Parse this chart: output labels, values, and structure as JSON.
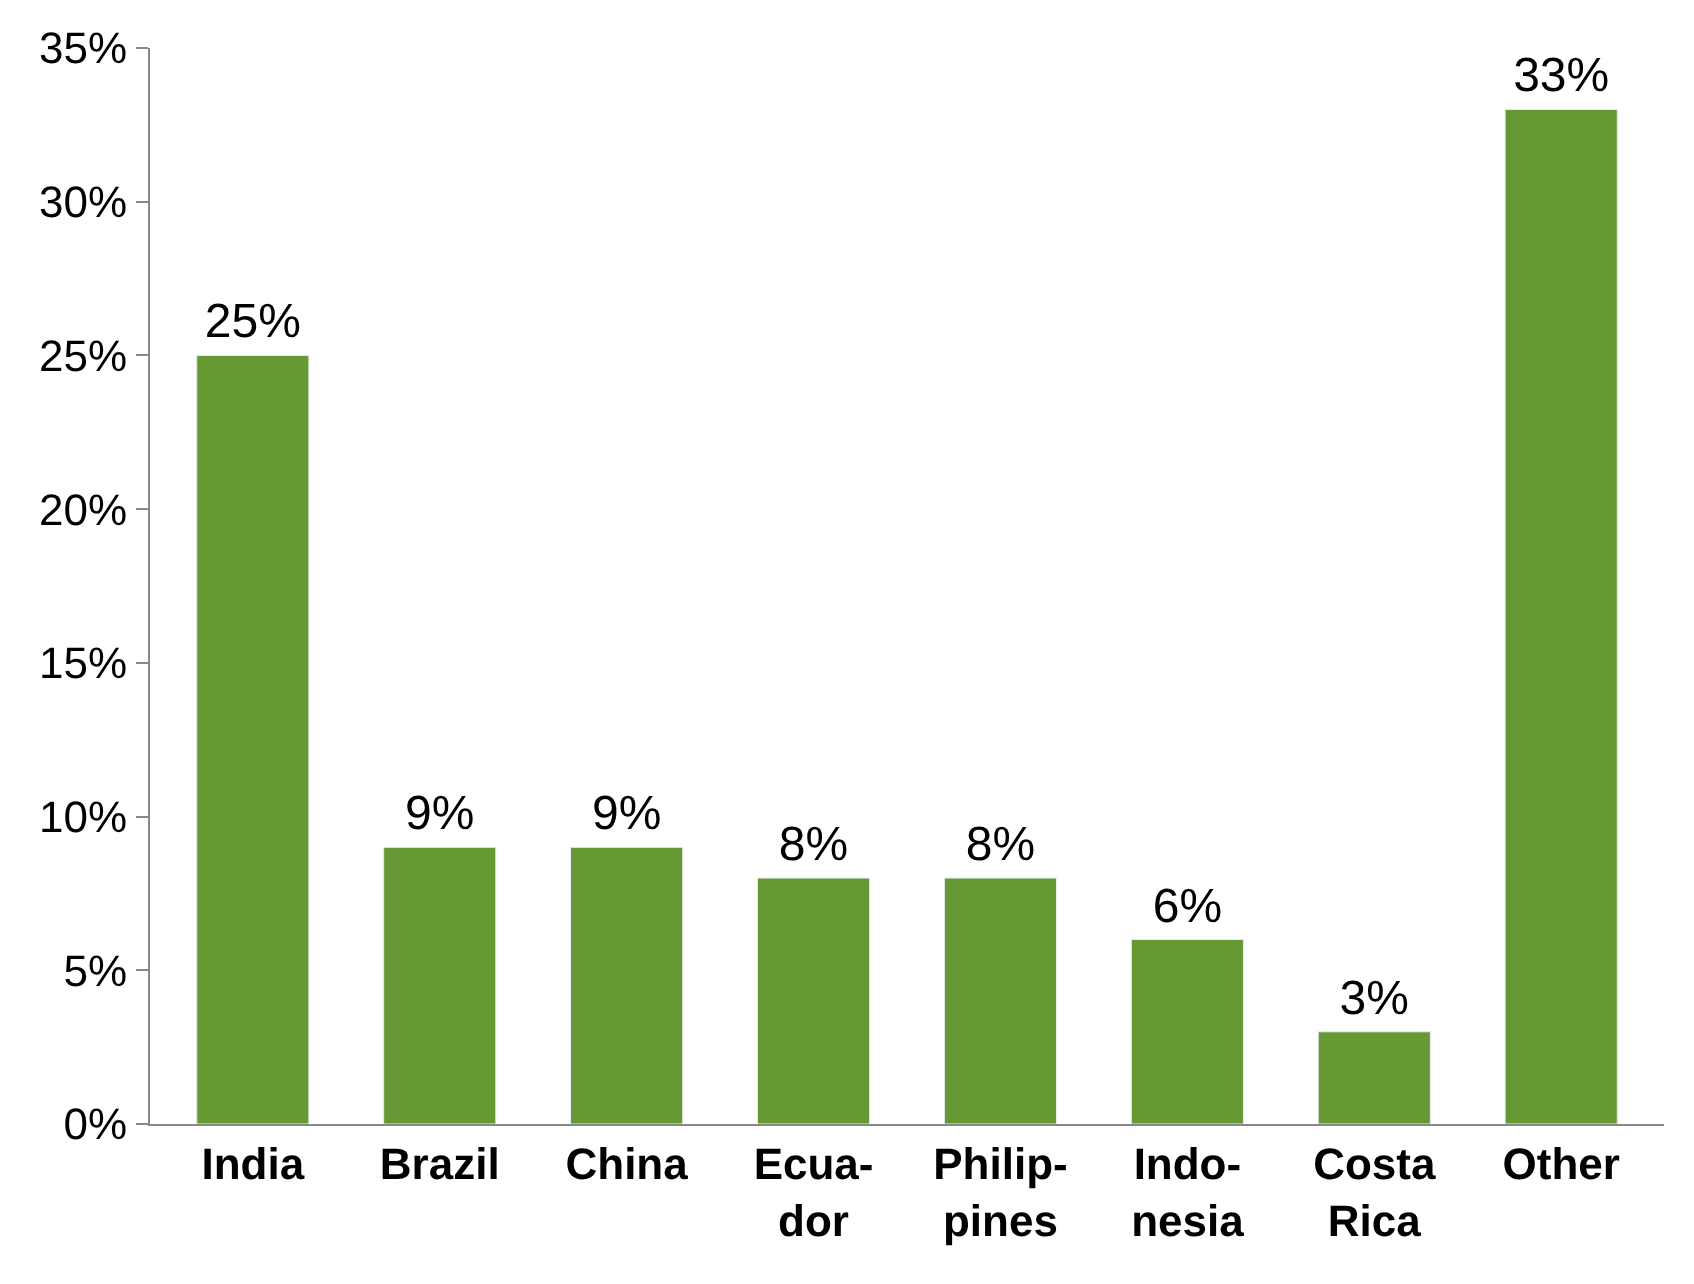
{
  "chart_data": {
    "type": "bar",
    "categories": [
      "India",
      "Brazil",
      "China",
      "Ecua-\ndor",
      "Philip-\npines",
      "Indo-\nnesia",
      "Costa\nRica",
      "Other"
    ],
    "values": [
      25,
      9,
      9,
      8,
      8,
      6,
      3,
      33
    ],
    "value_labels": [
      "25%",
      "9%",
      "9%",
      "8%",
      "8%",
      "6%",
      "3%",
      "33%"
    ],
    "color": "#669933",
    "ylim": [
      0,
      35
    ],
    "yticks": [
      {
        "value": 0,
        "label": "0%"
      },
      {
        "value": 5,
        "label": "5%"
      },
      {
        "value": 10,
        "label": "10%"
      },
      {
        "value": 15,
        "label": "15%"
      },
      {
        "value": 20,
        "label": "20%"
      },
      {
        "value": 25,
        "label": "25%"
      },
      {
        "value": 30,
        "label": "30%"
      },
      {
        "value": 35,
        "label": "35%"
      }
    ],
    "data_labels": false
  }
}
